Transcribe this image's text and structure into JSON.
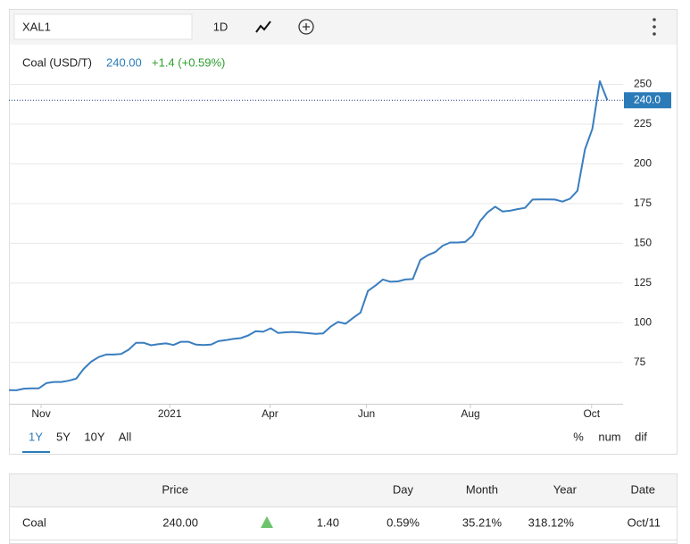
{
  "toolbar": {
    "symbol": "XAL1",
    "interval": "1D"
  },
  "chart_data": {
    "type": "line",
    "title": "Coal (USD/T)",
    "last_price": "240.00",
    "change": "+1.4 (+0.59%)",
    "last": {
      "value": 240,
      "label": "240.0"
    },
    "color": "#3a7ebf",
    "values": [
      57.6,
      57.5,
      58.5,
      58.7,
      58.7,
      62,
      62.7,
      62.7,
      63.5,
      64.8,
      71,
      75.5,
      78.4,
      80,
      80,
      80.3,
      83,
      87.4,
      87.4,
      85.8,
      86.5,
      87,
      86,
      88,
      88,
      86.2,
      86,
      86.2,
      88.4,
      89,
      89.8,
      90.3,
      92,
      94.7,
      94.3,
      96.5,
      93.5,
      94,
      94.2,
      93.8,
      93.4,
      93,
      93.3,
      97.5,
      100.5,
      99.4,
      103,
      106.4,
      120,
      123.4,
      127.2,
      125.8,
      126,
      127.2,
      127.5,
      139.5,
      142.5,
      144.5,
      148.5,
      150.5,
      150.5,
      150.8,
      155,
      164,
      169.5,
      173,
      170,
      170.5,
      171.5,
      172.3,
      177.5,
      177.6,
      177.6,
      177.5,
      176.2,
      178,
      183,
      209,
      222,
      252,
      240
    ],
    "xlim": [
      0,
      82.1
    ],
    "xticks": [
      {
        "value": 4.3,
        "label": "Nov"
      },
      {
        "value": 21.5,
        "label": "2021"
      },
      {
        "value": 34.9,
        "label": "Apr"
      },
      {
        "value": 47.8,
        "label": "Jun"
      },
      {
        "value": 61.7,
        "label": "Aug"
      },
      {
        "value": 77.9,
        "label": "Oct"
      }
    ],
    "ylim": [
      49,
      275
    ],
    "yticks": [
      75,
      100,
      125,
      150,
      175,
      200,
      225,
      250
    ],
    "grid": true,
    "ranges": [
      "1Y",
      "5Y",
      "10Y",
      "All"
    ],
    "active_range": 0,
    "modes": [
      "%",
      "num",
      "dif"
    ]
  },
  "table": {
    "columns": [
      "Price",
      "Day",
      "Month",
      "Year",
      "Date"
    ],
    "rows": [
      [
        "Coal",
        "240.00",
        "1.40",
        "0.59%",
        "35.21%",
        "318.12%",
        "Oct/11"
      ]
    ],
    "direction": "up"
  }
}
